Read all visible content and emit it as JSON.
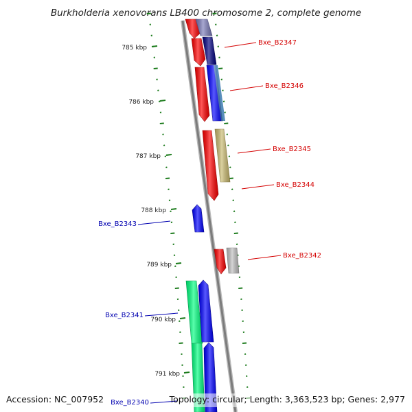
{
  "title": "Burkholderia xenovorans LB400 chromosome 2, complete genome",
  "footer": {
    "accession": "Accession: NC_007952",
    "topology": "Topology: circular; Length: 3,363,523 bp; Genes: 2,977"
  },
  "colors": {
    "forward_label": "#d40000",
    "reverse_label": "#0000b0",
    "tick": "#1a7a1a",
    "backbone": "#8a8a8a",
    "cds_red": "#ff0000",
    "cds_blue": "#0000ff",
    "cds_navy": "#000080",
    "cds_steel": "#4682b4",
    "cds_khaki": "#c8b96e",
    "cds_gray": "#c0c0c0",
    "cds_spring": "#00ff7f",
    "cds_lavender": "#7a7ab8"
  },
  "ticks": [
    "785 kbp",
    "786 kbp",
    "787 kbp",
    "788 kbp",
    "789 kbp",
    "790 kbp",
    "791 kbp"
  ],
  "labels": {
    "forward": [
      "Bxe_B2347",
      "Bxe_B2346",
      "Bxe_B2345",
      "Bxe_B2344",
      "Bxe_B2342"
    ],
    "reverse": [
      "Bxe_B2343",
      "Bxe_B2341",
      "Bxe_B2340"
    ]
  }
}
